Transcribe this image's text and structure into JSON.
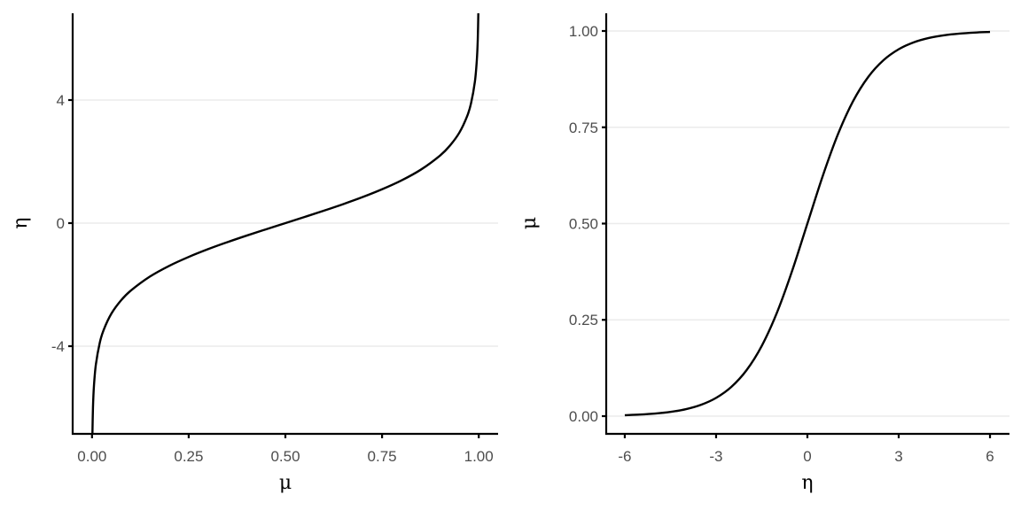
{
  "chart_data": [
    {
      "type": "line",
      "xlabel": "μ",
      "ylabel": "η",
      "xlim": [
        -0.05,
        1.05
      ],
      "ylim": [
        -6.85,
        6.82
      ],
      "x_ticks": [
        "0.00",
        "0.25",
        "0.50",
        "0.75",
        "1.00"
      ],
      "x_tick_values": [
        0,
        0.25,
        0.5,
        0.75,
        1
      ],
      "y_ticks": [
        "-4",
        "0",
        "4"
      ],
      "y_tick_values": [
        -4,
        0,
        4
      ],
      "grid": "horizontal major",
      "line_color": "#000000",
      "x": [
        0.001,
        0.0025,
        0.005,
        0.01,
        0.02,
        0.03,
        0.05,
        0.075,
        0.1,
        0.15,
        0.2,
        0.25,
        0.3,
        0.35,
        0.4,
        0.45,
        0.5,
        0.55,
        0.6,
        0.65,
        0.7,
        0.75,
        0.8,
        0.85,
        0.9,
        0.925,
        0.95,
        0.97,
        0.98,
        0.99,
        0.995,
        0.9975,
        0.999
      ],
      "y": [
        -6.907,
        -5.989,
        -5.293,
        -4.595,
        -3.892,
        -3.476,
        -2.944,
        -2.512,
        -2.197,
        -1.735,
        -1.386,
        -1.099,
        -0.847,
        -0.619,
        -0.405,
        -0.201,
        0,
        0.201,
        0.405,
        0.619,
        0.847,
        1.099,
        1.386,
        1.735,
        2.197,
        2.512,
        2.944,
        3.476,
        3.892,
        4.595,
        5.293,
        5.989,
        6.907
      ]
    },
    {
      "type": "line",
      "xlabel": "η",
      "ylabel": "μ",
      "xlim": [
        -6.61,
        6.64
      ],
      "ylim": [
        -0.046,
        1.046
      ],
      "x_ticks": [
        "-6",
        "-3",
        "0",
        "3",
        "6"
      ],
      "x_tick_values": [
        -6,
        -3,
        0,
        3,
        6
      ],
      "y_ticks": [
        "0.00",
        "0.25",
        "0.50",
        "0.75",
        "1.00"
      ],
      "y_tick_values": [
        0,
        0.25,
        0.5,
        0.75,
        1
      ],
      "grid": "horizontal major",
      "line_color": "#000000",
      "x": [
        -6,
        -5.5,
        -5,
        -4.5,
        -4,
        -3.5,
        -3,
        -2.5,
        -2,
        -1.5,
        -1,
        -0.5,
        0,
        0.5,
        1,
        1.5,
        2,
        2.5,
        3,
        3.5,
        4,
        4.5,
        5,
        5.5,
        6
      ],
      "y": [
        0.00247,
        0.00407,
        0.00669,
        0.01099,
        0.01799,
        0.02931,
        0.04743,
        0.07586,
        0.1192,
        0.1824,
        0.2689,
        0.3775,
        0.5,
        0.6225,
        0.7311,
        0.8176,
        0.8808,
        0.92414,
        0.95257,
        0.97069,
        0.98201,
        0.98901,
        0.99331,
        0.99593,
        0.99753
      ]
    }
  ]
}
